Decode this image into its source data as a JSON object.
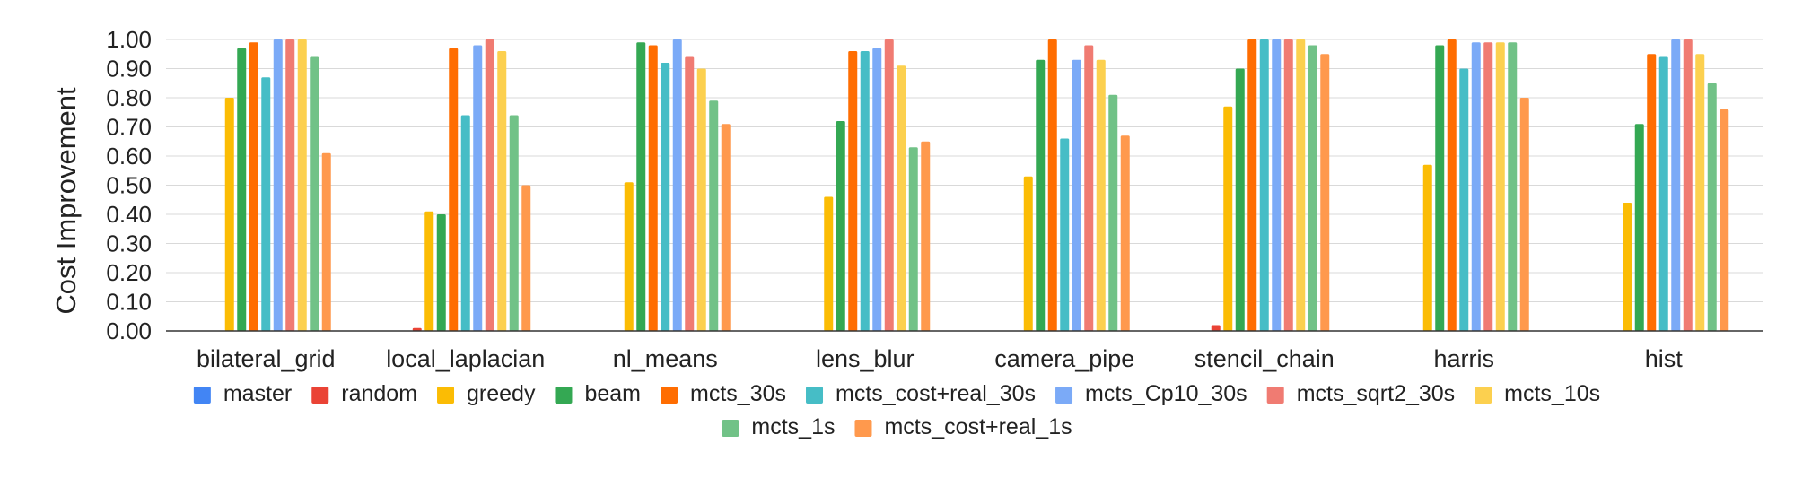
{
  "chart_data": {
    "type": "bar",
    "title": "",
    "xlabel": "",
    "ylabel": "Cost Improvement",
    "ylim": [
      0,
      1.0
    ],
    "yticks": [
      "0.00",
      "0.10",
      "0.20",
      "0.30",
      "0.40",
      "0.50",
      "0.60",
      "0.70",
      "0.80",
      "0.90",
      "1.00"
    ],
    "grid": true,
    "legend_position": "bottom",
    "categories": [
      "bilateral_grid",
      "local_laplacian",
      "nl_means",
      "lens_blur",
      "camera_pipe",
      "stencil_chain",
      "harris",
      "hist"
    ],
    "series": [
      {
        "name": "master",
        "color": "#4285F4",
        "values": [
          0.0,
          0.0,
          0.0,
          0.0,
          0.0,
          0.0,
          0.0,
          0.0
        ]
      },
      {
        "name": "random",
        "color": "#EA4335",
        "values": [
          0.0,
          0.01,
          0.0,
          0.0,
          0.0,
          0.02,
          0.0,
          0.0
        ]
      },
      {
        "name": "greedy",
        "color": "#FBBC04",
        "values": [
          0.8,
          0.41,
          0.51,
          0.46,
          0.53,
          0.77,
          0.57,
          0.44
        ]
      },
      {
        "name": "beam",
        "color": "#34A853",
        "values": [
          0.97,
          0.4,
          0.99,
          0.72,
          0.93,
          0.9,
          0.98,
          0.71
        ]
      },
      {
        "name": "mcts_30s",
        "color": "#FF6D01",
        "values": [
          0.99,
          0.97,
          0.98,
          0.96,
          1.0,
          1.0,
          1.0,
          0.95
        ]
      },
      {
        "name": "mcts_cost+real_30s",
        "color": "#46BDC6",
        "values": [
          0.87,
          0.74,
          0.92,
          0.96,
          0.66,
          1.0,
          0.9,
          0.94
        ]
      },
      {
        "name": "mcts_Cp10_30s",
        "color": "#7BAAF7",
        "values": [
          1.0,
          0.98,
          1.0,
          0.97,
          0.93,
          1.0,
          0.99,
          1.0
        ]
      },
      {
        "name": "mcts_sqrt2_30s",
        "color": "#F07B72",
        "values": [
          1.0,
          1.0,
          0.94,
          1.0,
          0.98,
          1.0,
          0.99,
          1.0
        ]
      },
      {
        "name": "mcts_10s",
        "color": "#FCD04F",
        "values": [
          1.0,
          0.96,
          0.9,
          0.91,
          0.93,
          1.0,
          0.99,
          0.95
        ]
      },
      {
        "name": "mcts_1s",
        "color": "#71C287",
        "values": [
          0.94,
          0.74,
          0.79,
          0.63,
          0.81,
          0.98,
          0.99,
          0.85
        ]
      },
      {
        "name": "mcts_cost+real_1s",
        "color": "#FF994D",
        "values": [
          0.61,
          0.5,
          0.71,
          0.65,
          0.67,
          0.95,
          0.8,
          0.76
        ]
      }
    ]
  }
}
